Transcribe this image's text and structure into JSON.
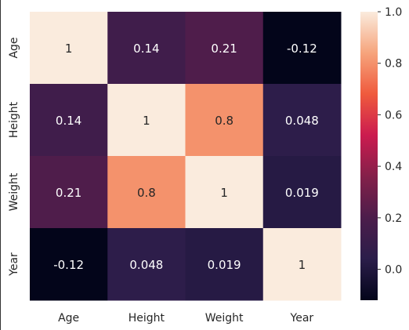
{
  "chart_data": {
    "type": "heatmap",
    "title": "",
    "xlabel": "",
    "ylabel": "",
    "x_categories": [
      "Age",
      "Height",
      "Weight",
      "Year"
    ],
    "y_categories": [
      "Age",
      "Height",
      "Weight",
      "Year"
    ],
    "values": [
      [
        1,
        0.14,
        0.21,
        -0.12
      ],
      [
        0.14,
        1,
        0.8,
        0.048
      ],
      [
        0.21,
        0.8,
        1,
        0.019
      ],
      [
        -0.12,
        0.048,
        0.019,
        1
      ]
    ],
    "annotations": [
      [
        "1",
        "0.14",
        "0.21",
        "-0.12"
      ],
      [
        "0.14",
        "1",
        "0.8",
        "0.048"
      ],
      [
        "0.21",
        "0.8",
        "1",
        "0.019"
      ],
      [
        "-0.12",
        "0.048",
        "0.019",
        "1"
      ]
    ],
    "colorbar": {
      "vmin": -0.12,
      "vmax": 1.0,
      "ticks": [
        0.0,
        0.2,
        0.4,
        0.6,
        0.8,
        1.0
      ],
      "tick_labels": [
        "0.0",
        "0.2",
        "0.4",
        "0.6",
        "0.8",
        "1.0"
      ],
      "colormap": "rocket",
      "colormap_stops": [
        "#03051a",
        "#2b1d4a",
        "#4c1d4b",
        "#84204a",
        "#cb1b4f",
        "#ef5a3d",
        "#f6a47c",
        "#faebdd"
      ]
    },
    "grid": false,
    "legend": "colorbar-right"
  }
}
